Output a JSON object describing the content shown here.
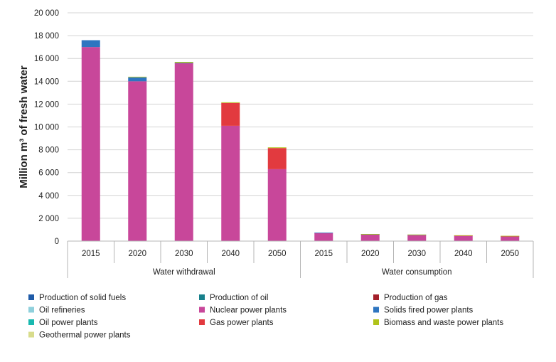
{
  "chart_data": {
    "type": "bar",
    "stacked": true,
    "ylabel": "Million m³ of fresh water",
    "ylim": [
      0,
      20000
    ],
    "yticks": [
      0,
      2000,
      4000,
      6000,
      8000,
      10000,
      12000,
      14000,
      16000,
      18000,
      20000
    ],
    "ytick_labels": [
      "0",
      "2 000",
      "4 000",
      "6 000",
      "8 000",
      "10 000",
      "12 000",
      "14 000",
      "16 000",
      "18 000",
      "20 000"
    ],
    "grid": true,
    "legend_position": "bottom",
    "categories": [
      "2015",
      "2020",
      "2030",
      "2040",
      "2050",
      "2015",
      "2020",
      "2030",
      "2040",
      "2050"
    ],
    "groups": [
      {
        "label": "Water withdrawal",
        "span": [
          0,
          5
        ]
      },
      {
        "label": "Water consumption",
        "span": [
          5,
          10
        ]
      }
    ],
    "series": [
      {
        "name": "Production of solid fuels",
        "color": "#1f5ba8",
        "values": [
          0,
          0,
          0,
          0,
          0,
          0,
          0,
          0,
          0,
          0
        ]
      },
      {
        "name": "Production of oil",
        "color": "#17808b",
        "values": [
          0,
          0,
          0,
          0,
          0,
          0,
          0,
          0,
          0,
          0
        ]
      },
      {
        "name": "Production of gas",
        "color": "#a3202a",
        "values": [
          0,
          0,
          0,
          0,
          0,
          0,
          0,
          0,
          0,
          0
        ]
      },
      {
        "name": "Oil refineries",
        "color": "#8fd0dc",
        "values": [
          0,
          0,
          0,
          0,
          0,
          0,
          0,
          0,
          0,
          0
        ]
      },
      {
        "name": "Nuclear power plants",
        "color": "#c8479a",
        "values": [
          17000,
          14000,
          15600,
          10100,
          6300,
          730,
          600,
          560,
          470,
          420
        ]
      },
      {
        "name": "Solids fired power plants",
        "color": "#2e75c0",
        "values": [
          600,
          350,
          20,
          0,
          0,
          10,
          10,
          5,
          0,
          0
        ]
      },
      {
        "name": "Oil power plants",
        "color": "#19b9b0",
        "values": [
          0,
          0,
          0,
          0,
          0,
          0,
          0,
          0,
          0,
          0
        ]
      },
      {
        "name": "Gas power plants",
        "color": "#e23a3f",
        "values": [
          0,
          0,
          0,
          2000,
          1850,
          0,
          0,
          0,
          30,
          30
        ]
      },
      {
        "name": "Biomass and waste power plants",
        "color": "#b0c31a",
        "values": [
          0,
          50,
          80,
          60,
          60,
          0,
          10,
          10,
          10,
          10
        ]
      },
      {
        "name": "Geothermal power plants",
        "color": "#d8dc8c",
        "values": [
          0,
          0,
          0,
          0,
          0,
          0,
          0,
          0,
          0,
          0
        ]
      }
    ]
  }
}
